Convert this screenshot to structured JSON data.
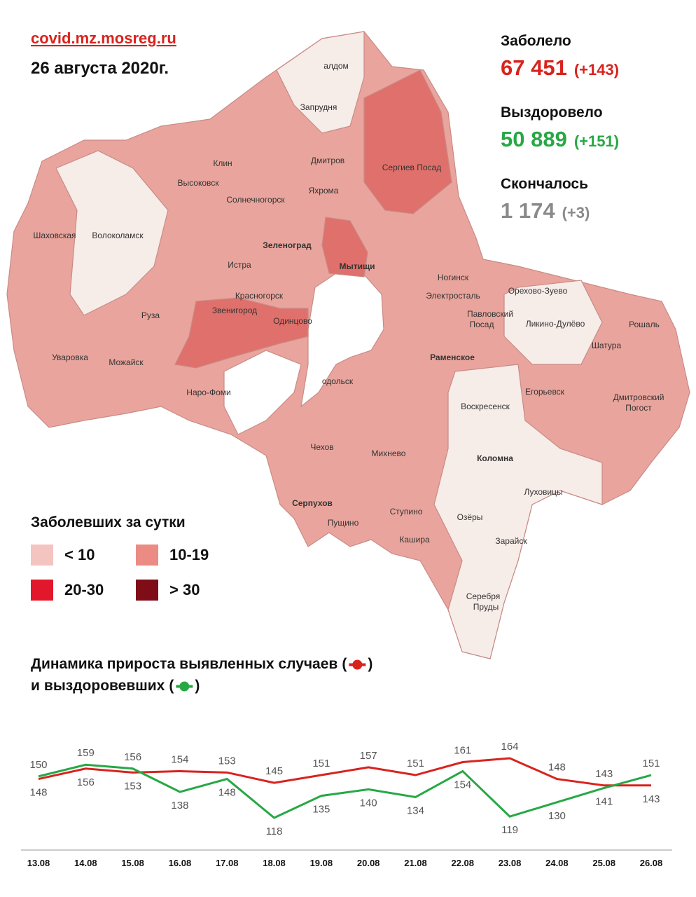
{
  "header": {
    "source": "covid.mz.mosreg.ru",
    "date": "26 августа 2020г."
  },
  "stats": [
    {
      "label": "Заболело",
      "value": "67 451",
      "delta": "(+143)",
      "color": "#d9231d"
    },
    {
      "label": "Выздоровело",
      "value": "50 889",
      "delta": "(+151)",
      "color": "#27a845"
    },
    {
      "label": "Скончалось",
      "value": "1 174",
      "delta": "(+3)",
      "color": "#8a8a8a"
    }
  ],
  "legend": {
    "title": "Заболевших за сутки",
    "items": [
      {
        "label": "< 10",
        "color": "#f4c4c0"
      },
      {
        "label": "10-19",
        "color": "#ec8a84"
      },
      {
        "label": "20-30",
        "color": "#e3172b"
      },
      {
        "label": "> 30",
        "color": "#7e0d18"
      }
    ]
  },
  "map": {
    "labels": [
      "алдом",
      "Запрудня",
      "Клин",
      "Дмитров",
      "Сергиев Посад",
      "Высоковск",
      "Яхрома",
      "Солнечногорск",
      "Шаховская",
      "Волоколамск",
      "Зеленоград",
      "Мытищи",
      "Истра",
      "Ногинск",
      "Орехово-Зуево",
      "Красногорск",
      "Электросталь",
      "Павловский",
      "Посад",
      "Звенигород",
      "Одинцово",
      "Ликино-Дулёво",
      "Руза",
      "Рошаль",
      "Шатура",
      "Уваровка",
      "Можайск",
      "Раменское",
      "Наро-Фоми",
      "одольск",
      "Егорьевск",
      "Воскресенск",
      "Дмитровский",
      "Погост",
      "Чехов",
      "Михнево",
      "Коломна",
      "Луховицы",
      "Серпухов",
      "Пущино",
      "Ступино",
      "Озёры",
      "Зарайск",
      "Кашира",
      "Серебря",
      "Пруды"
    ]
  },
  "chart_data": {
    "type": "line",
    "title": "Динамика прироста",
    "connector": "и",
    "paren_open": "(",
    "paren_close": ")",
    "categories": [
      "13.08",
      "14.08",
      "15.08",
      "16.08",
      "17.08",
      "18.08",
      "19.08",
      "20.08",
      "21.08",
      "22.08",
      "23.08",
      "24.08",
      "25.08",
      "26.08"
    ],
    "series": [
      {
        "name": "выявленных случаев",
        "color": "#d9231d",
        "values": [
          148,
          156,
          153,
          154,
          153,
          145,
          151,
          157,
          151,
          161,
          164,
          148,
          143,
          143
        ]
      },
      {
        "name": "выздоровевших",
        "color": "#27a845",
        "values": [
          150,
          159,
          156,
          138,
          148,
          118,
          135,
          140,
          134,
          154,
          119,
          130,
          141,
          151
        ]
      }
    ]
  }
}
